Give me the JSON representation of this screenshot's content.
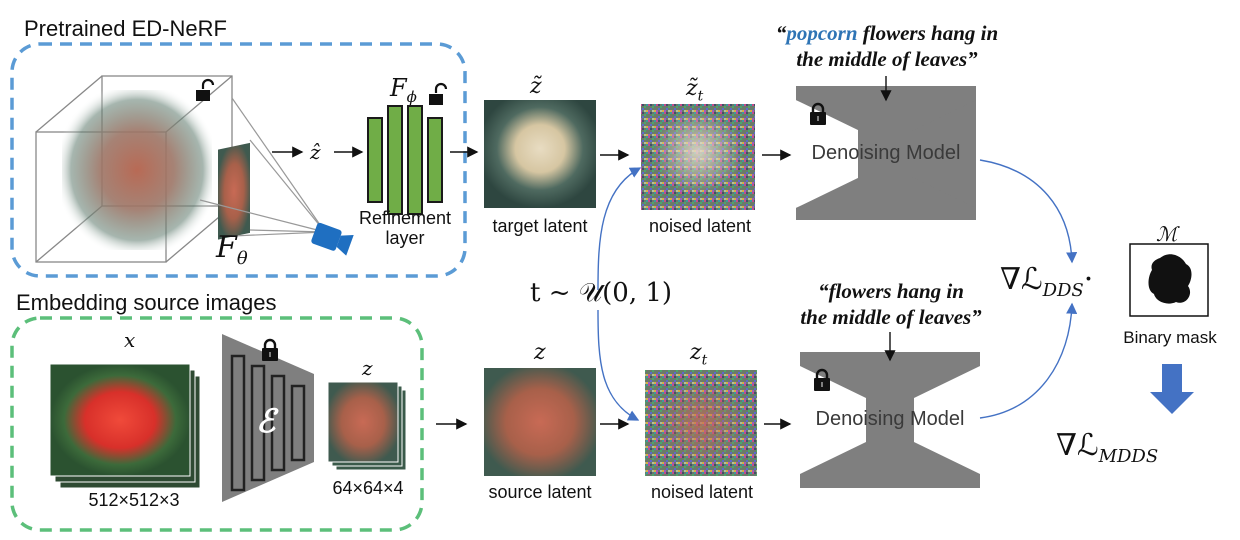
{
  "sections": {
    "nerf_title": "Pretrained ED-NeRF",
    "embed_title": "Embedding source images"
  },
  "nerf": {
    "f_theta": "F",
    "f_theta_sub": "θ",
    "f_phi": "F",
    "f_phi_sub": "ϕ",
    "z_hat": "ẑ",
    "refinement": "Refinement\nlayer"
  },
  "top_row": {
    "z_tilde": "z̃",
    "z_tilde_label": "target latent",
    "z_tilde_t": "z̃",
    "z_tilde_t_sub": "t",
    "noised_label": "noised latent",
    "prompt_highlight": "popcorn",
    "prompt_line1_rest": " flowers hang in",
    "prompt_line2": "the middle of leaves”",
    "prompt_open_quote": "“",
    "model_label": "Denoising Model"
  },
  "timestep": "t ~ 𝒰(0, 1)",
  "bottom_row": {
    "x_label": "x",
    "x_dims": "512×512×3",
    "encoder": "ℰ",
    "z_label": "z",
    "z_dims": "64×64×4",
    "z_source": "z",
    "z_source_label": "source latent",
    "z_t": "z",
    "z_t_sub": "t",
    "noised_label": "noised latent",
    "prompt_line1": "“flowers hang in",
    "prompt_line2": "the middle of leaves”",
    "model_label": "Denoising Model"
  },
  "loss": {
    "dds": "∇ℒ",
    "dds_sub": "DDS",
    "dds_dot": "·",
    "mask_symbol": "ℳ",
    "mask_label": "Binary mask",
    "mdds": "∇ℒ",
    "mdds_sub": "MDDS"
  },
  "colors": {
    "nerf_border": "#5b9bd5",
    "embed_border": "#5cbf7a",
    "refinement_green": "#70ad47",
    "model_gray": "#7f7f7f",
    "arrow_blue": "#4472c4",
    "camera_blue": "#1f6fc1",
    "prompt_highlight": "#2e74b5"
  }
}
